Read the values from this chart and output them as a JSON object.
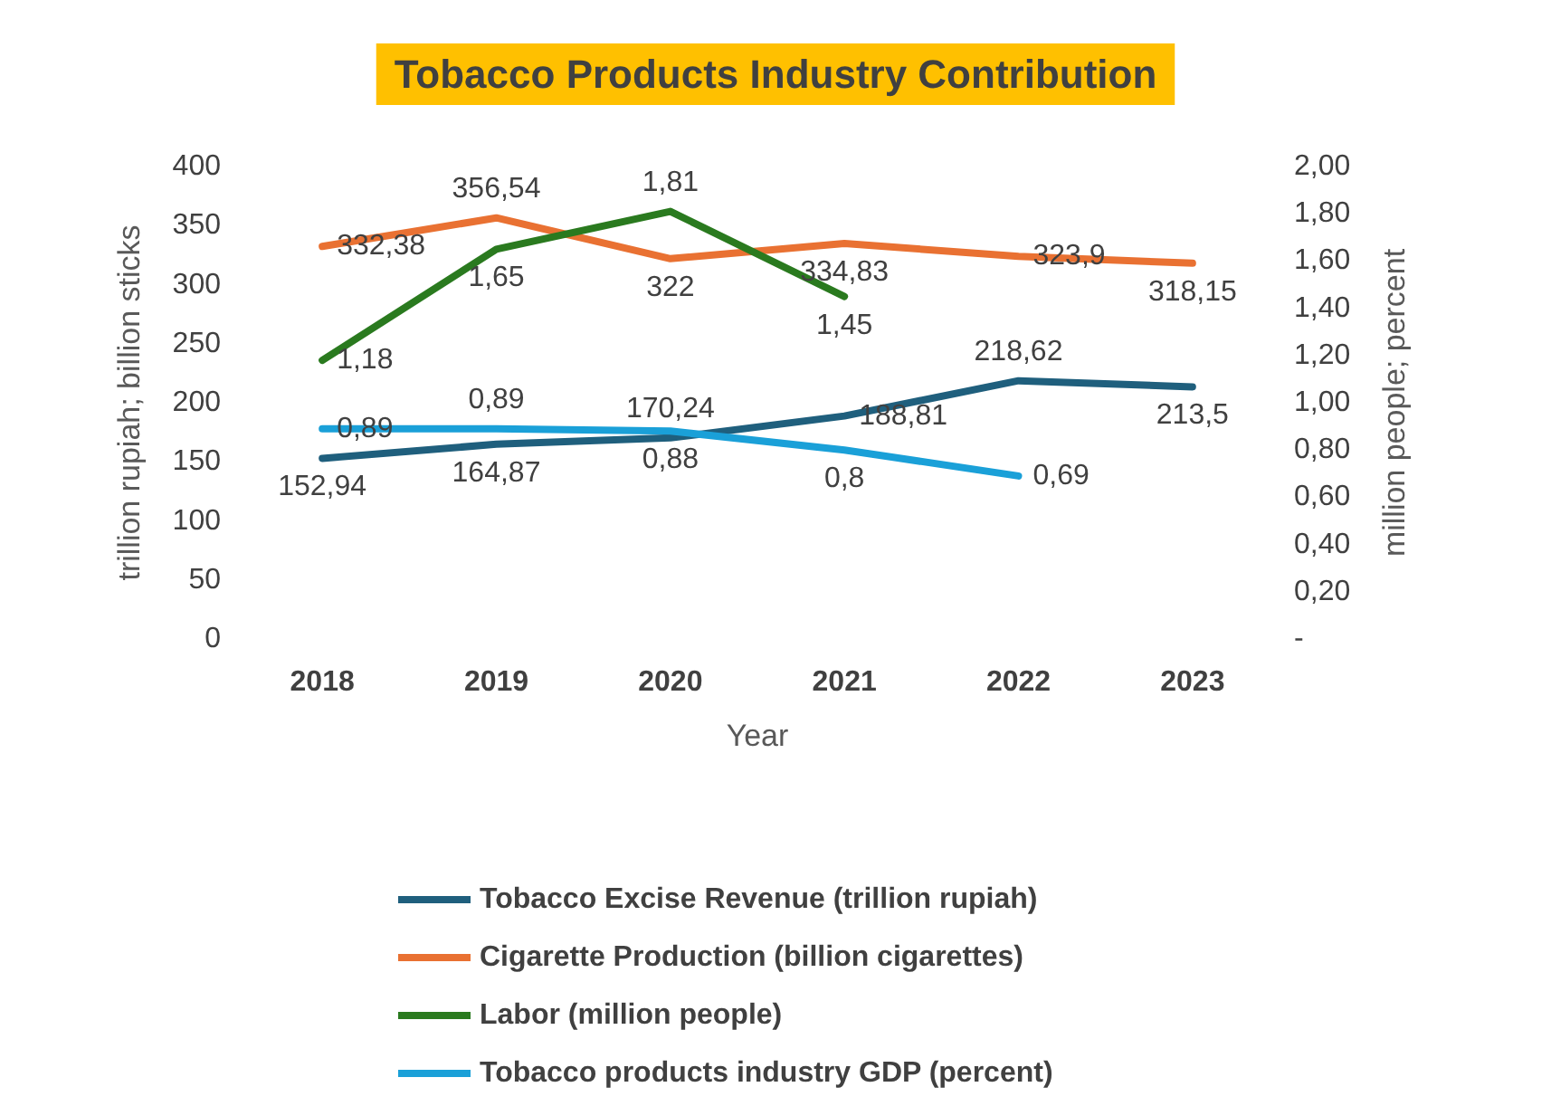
{
  "chart_data": {
    "type": "line",
    "title": "Tobacco Products Industry Contribution",
    "xlabel": "Year",
    "ylabel": "trillion rupiah; billion sticks",
    "y2label": "million people; percent",
    "categories": [
      "2018",
      "2019",
      "2020",
      "2021",
      "2022",
      "2023"
    ],
    "series": [
      {
        "name": "Tobacco Excise Revenue (trillion rupiah)",
        "color": "#1f5f7d",
        "values": [
          152.94,
          164.87,
          170.24,
          188.81,
          218.62,
          213.5
        ],
        "value_labels": [
          "152,94",
          "164,87",
          "170,24",
          "188,81",
          "218,62",
          "213,5"
        ]
      },
      {
        "name": "Cigarette Production (billion cigarettes)",
        "color": "#e97132",
        "values": [
          332.38,
          356.54,
          322,
          334.83,
          323.9,
          318.15
        ],
        "value_labels": [
          "332,38",
          "356,54",
          "322",
          "334,83",
          "323,9",
          "318,15"
        ]
      },
      {
        "name": "Labor (million people)",
        "color": "#2a7a1f",
        "axis": "y2",
        "values": [
          1.18,
          1.65,
          1.81,
          1.45,
          null,
          null
        ],
        "value_labels": [
          "1,18",
          "1,65",
          "1,81",
          "1,45",
          null,
          null
        ]
      },
      {
        "name": "Tobacco products industry GDP (percent)",
        "color": "#1aa0d8",
        "axis": "y2",
        "values": [
          0.89,
          0.89,
          0.88,
          0.8,
          0.69,
          null
        ],
        "value_labels": [
          "0,89",
          "0,89",
          "0,88",
          "0,8",
          "0,69",
          null
        ]
      }
    ],
    "ylim": [
      0,
      400
    ],
    "yticks": [
      0,
      50,
      100,
      150,
      200,
      250,
      300,
      350,
      400
    ],
    "y2lim": [
      0,
      2
    ],
    "y2ticks": [
      {
        "value": 0,
        "label": "-"
      },
      {
        "value": 0.2,
        "label": "0,20"
      },
      {
        "value": 0.4,
        "label": "0,40"
      },
      {
        "value": 0.6,
        "label": "0,60"
      },
      {
        "value": 0.8,
        "label": "0,80"
      },
      {
        "value": 1,
        "label": "1,00"
      },
      {
        "value": 1.2,
        "label": "1,20"
      },
      {
        "value": 1.4,
        "label": "1,40"
      },
      {
        "value": 1.6,
        "label": "1,60"
      },
      {
        "value": 1.8,
        "label": "1,80"
      },
      {
        "value": 2,
        "label": "2,00"
      }
    ],
    "grid": false,
    "legend": "bottom",
    "marker": "none",
    "line_style": "solid"
  }
}
